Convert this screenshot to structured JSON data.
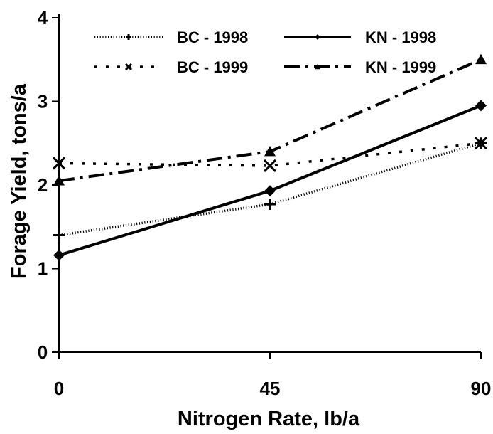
{
  "chart_data": {
    "type": "line",
    "title": "",
    "xlabel": "Nitrogen Rate, lb/a",
    "ylabel": "Forage Yield, tons/a",
    "x": [
      0,
      45,
      90
    ],
    "x_ticks": [
      "0",
      "45",
      "90"
    ],
    "y_ticks": [
      "0",
      "1",
      "2",
      "3",
      "4"
    ],
    "xlim": [
      0,
      90
    ],
    "ylim": [
      0,
      4
    ],
    "grid": false,
    "legend_position": "top",
    "series": [
      {
        "name": "BC - 1998",
        "values": [
          1.4,
          1.77,
          2.5
        ],
        "line": "dotted",
        "marker": "plus",
        "color": "#000000"
      },
      {
        "name": "KN - 1998",
        "values": [
          1.16,
          1.93,
          2.95
        ],
        "line": "solid",
        "marker": "diamond",
        "color": "#000000"
      },
      {
        "name": "BC - 1999",
        "values": [
          2.26,
          2.23,
          2.5
        ],
        "line": "spaced-dots",
        "marker": "x",
        "color": "#000000"
      },
      {
        "name": "KN - 1999",
        "values": [
          2.05,
          2.4,
          3.5
        ],
        "line": "dash-dot",
        "marker": "triangle",
        "color": "#000000"
      }
    ]
  }
}
